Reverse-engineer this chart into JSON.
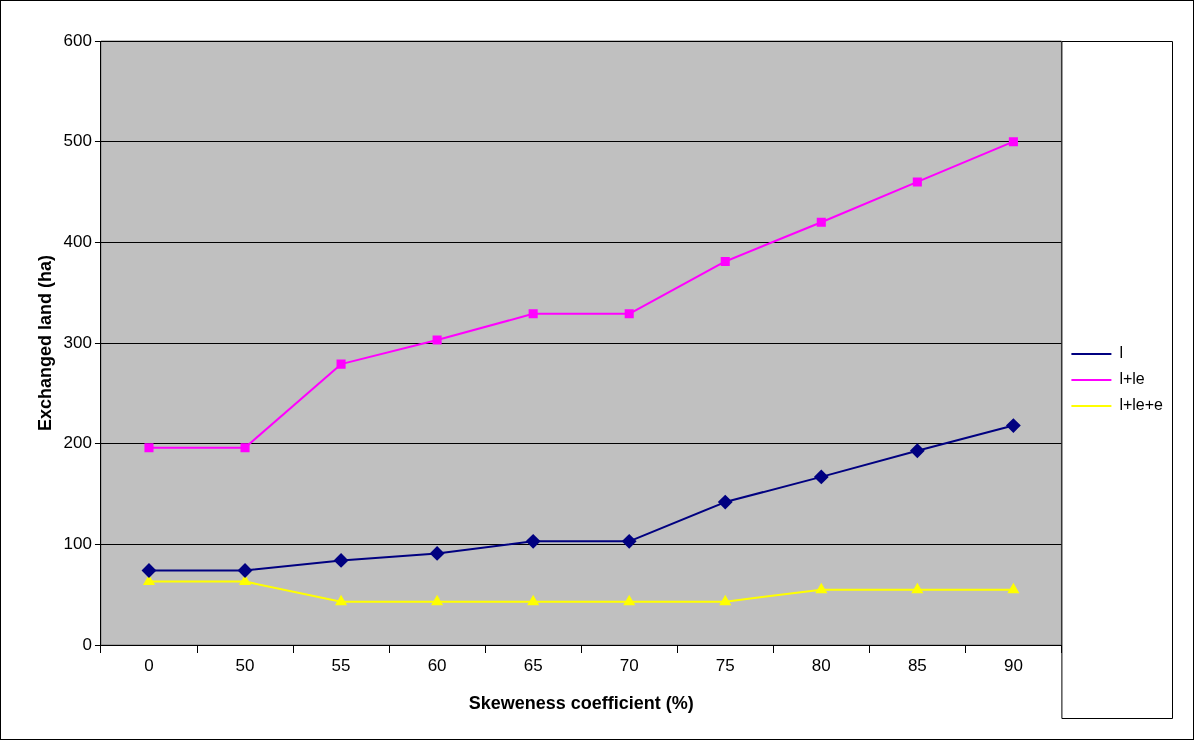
{
  "chart_data": {
    "type": "line",
    "xlabel": "Skeweness coefficient (%)",
    "ylabel": "Exchanged land (ha)",
    "categories": [
      "0",
      "50",
      "55",
      "60",
      "65",
      "70",
      "75",
      "80",
      "85",
      "90"
    ],
    "series": [
      {
        "name": "l",
        "color": "#000080",
        "marker": "diamond",
        "values": [
          74,
          74,
          84,
          91,
          103,
          103,
          142,
          167,
          193,
          218
        ]
      },
      {
        "name": "l+le",
        "color": "#ff00ff",
        "marker": "square",
        "values": [
          196,
          196,
          279,
          303,
          329,
          329,
          381,
          420,
          460,
          500
        ]
      },
      {
        "name": "l+le+e",
        "color": "#ffff00",
        "marker": "triangle",
        "values": [
          63,
          63,
          43,
          43,
          43,
          43,
          43,
          55,
          55,
          55
        ]
      }
    ],
    "ylim": [
      0,
      600
    ],
    "yticks": [
      0,
      100,
      200,
      300,
      400,
      500,
      600
    ],
    "grid": "y",
    "legend": "right",
    "line_style": "solid"
  }
}
